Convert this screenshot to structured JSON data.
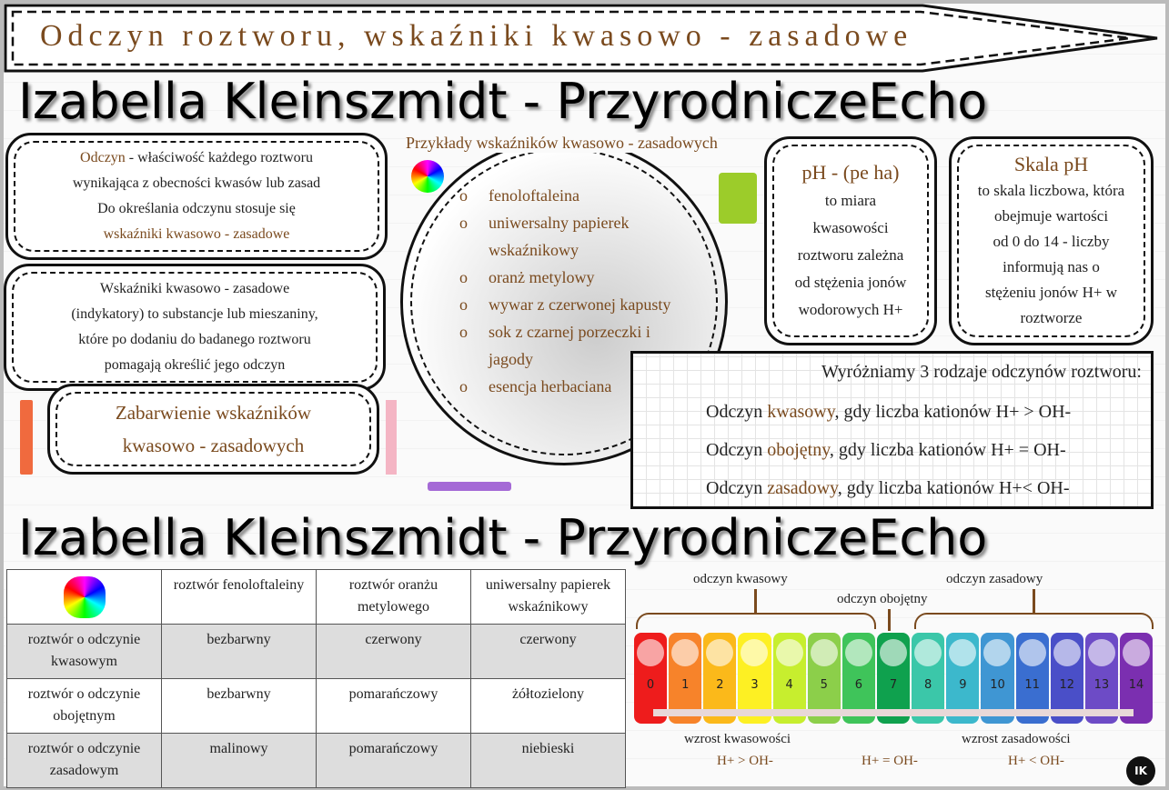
{
  "title": "Odczyn roztworu, wskaźniki kwasowo - zasadowe",
  "odczyn_box": {
    "term": "Odczyn",
    "line1": " - właściwość każdego roztworu",
    "line2": "wynikająca z obecności kwasów lub zasad",
    "line3": "Do określania odczynu stosuje się",
    "line4": "wskaźniki kwasowo - zasadowe"
  },
  "indicators_box": {
    "lines": [
      "Wskaźniki kwasowo - zasadowe",
      "(indykatory) to substancje lub mieszaniny,",
      "które po dodaniu do badanego roztworu",
      "pomagają określić jego odczyn"
    ]
  },
  "colors_box": {
    "line1": "Zabarwienie wskaźników",
    "line2": "kwasowo - zasadowych"
  },
  "examples": {
    "title": "Przykłady wskaźników kwasowo - zasadowych",
    "bullet": "o",
    "items": [
      "fenoloftaleina",
      "uniwersalny papierek wskaźnikowy",
      "oranż metylowy",
      "wywar z czerwonej kapusty",
      "sok z czarnej porzeczki i jagody",
      "esencja herbaciana"
    ]
  },
  "ph_box": {
    "heading": "pH - (pe ha)",
    "lines": [
      "to miara",
      "kwasowości",
      "roztworu zależna",
      "od stężenia jonów",
      "wodorowych H+"
    ]
  },
  "scale_box": {
    "heading": "Skala pH",
    "lines": [
      "to skala liczbowa, która",
      "obejmuje wartości",
      "od 0 do 14 - liczby",
      "informują nas o",
      "stężeniu jonów H+ w",
      "roztworze"
    ]
  },
  "reactions": {
    "heading": "Wyróżniamy 3 rodzaje odczynów roztworu:",
    "rows": [
      {
        "pre": "Odczyn ",
        "kind": "kwasowy",
        "post": ", gdy liczba kationów H+ > OH-"
      },
      {
        "pre": "Odczyn ",
        "kind": "obojętny",
        "post": ", gdy liczba kationów H+ = OH-"
      },
      {
        "pre": "Odczyn ",
        "kind": "zasadowy",
        "post": ", gdy liczba kationów H+< OH-"
      }
    ]
  },
  "table": {
    "headers": [
      "",
      "roztwór fenoloftaleiny",
      "roztwór oranżu metylowego",
      "uniwersalny papierek wskaźnikowy"
    ],
    "rows": [
      [
        "roztwór o odczynie kwasowym",
        "bezbarwny",
        "czerwony",
        "czerwony"
      ],
      [
        "roztwór o odczynie obojętnym",
        "bezbarwny",
        "pomarańczowy",
        "żółtozielony"
      ],
      [
        "roztwór o odczynie zasadowym",
        "malinowy",
        "pomarańczowy",
        "niebieski"
      ]
    ]
  },
  "ph_scale": {
    "values": [
      "0",
      "1",
      "2",
      "3",
      "4",
      "5",
      "6",
      "7",
      "8",
      "9",
      "10",
      "11",
      "12",
      "13",
      "14"
    ],
    "colors": [
      "#ee1c1c",
      "#f7832a",
      "#fbb91a",
      "#fdf023",
      "#c7ee2e",
      "#8ccf4a",
      "#3fc45a",
      "#0fa14e",
      "#3bc7a9",
      "#3cb8cc",
      "#3f96d3",
      "#3a6ed0",
      "#4a4fc8",
      "#6d4bc6",
      "#7b2fb0"
    ],
    "acid_label": "odczyn kwasowy",
    "neutral_label": "odczyn obojętny",
    "base_label": "odczyn zasadowy",
    "acid_increase": "wzrost kwasowości",
    "base_increase": "wzrost zasadowości",
    "acid_rel": "H+ > OH-",
    "neutral_rel": "H+ = OH-",
    "base_rel": "H+ < OH-"
  },
  "badge": "IK",
  "watermark": "Izabella Kleinszmidt - PrzyrodniczeEcho",
  "accent": "#7a4a1e"
}
